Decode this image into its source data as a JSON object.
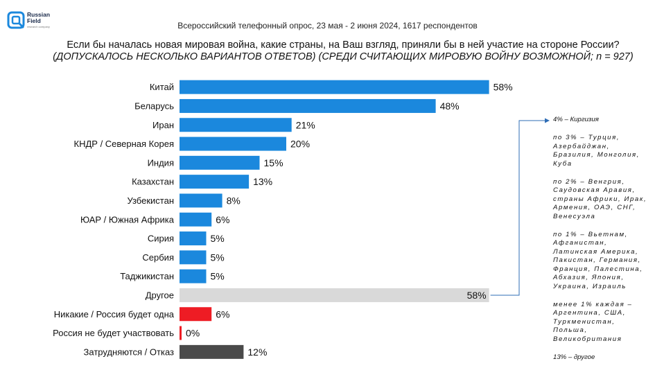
{
  "brand": {
    "name_line1": "Russian",
    "name_line2": "Field",
    "tagline": "research company"
  },
  "survey_line": "Всероссийский телефонный опрос, 23 мая - 2 июня 2024, 1617 респондентов",
  "question": {
    "main": "Если бы началась новая мировая война, какие страны, на Ваш взгляд, приняли бы в ней участие на стороне России? ",
    "note": "(ДОПУСКАЛОСЬ НЕСКОЛЬКО ВАРИАНТОВ ОТВЕТОВ) (СРЕДИ СЧИТАЮЩИХ МИРОВУЮ ВОЙНУ ВОЗМОЖНОЙ;  n = 927)"
  },
  "colors": {
    "blue": "#1b88dd",
    "grey": "#d9d9d9",
    "red": "#ee1c24",
    "dark": "#4a4a4a",
    "arrow": "#2e6db5"
  },
  "chart_data": {
    "type": "bar",
    "orientation": "horizontal",
    "xlim": [
      0,
      60
    ],
    "value_suffix": "%",
    "categories": [
      "Китай",
      "Беларусь",
      "Иран",
      "КНДР / Северная Корея",
      "Индия",
      "Казахстан",
      "Узбекистан",
      "ЮАР / Южная Африка",
      "Сирия",
      "Сербия",
      "Таджикистан",
      "Другое",
      "Никакие / Россия будет одна",
      "Россия не будет участвовать",
      "Затрудняются / Отказ"
    ],
    "values": [
      58,
      48,
      21,
      20,
      15,
      13,
      8,
      6,
      5,
      5,
      5,
      58,
      6,
      0,
      12
    ],
    "bar_colors": [
      "blue",
      "blue",
      "blue",
      "blue",
      "blue",
      "blue",
      "blue",
      "blue",
      "blue",
      "blue",
      "blue",
      "grey",
      "red",
      "red",
      "dark"
    ]
  },
  "other_breakdown": [
    "4% – Киргизия",
    "по 3% – Турция, Азербайджан, Бразилия, Монголия, Куба",
    "по 2% – Венгрия, Саудовская Аравия, страны Африки, Ирак, Армения, ОАЭ, СНГ, Венесуэла",
    "по 1% – Вьетнам, Афганистан, Латинская Америка, Пакистан, Германия, Франция, Палестина, Абхазия, Япония, Украина, Израиль",
    "менее 1% каждая – Аргентина, США, Туркменистан, Польша, Великобритания",
    "13% – другое"
  ]
}
